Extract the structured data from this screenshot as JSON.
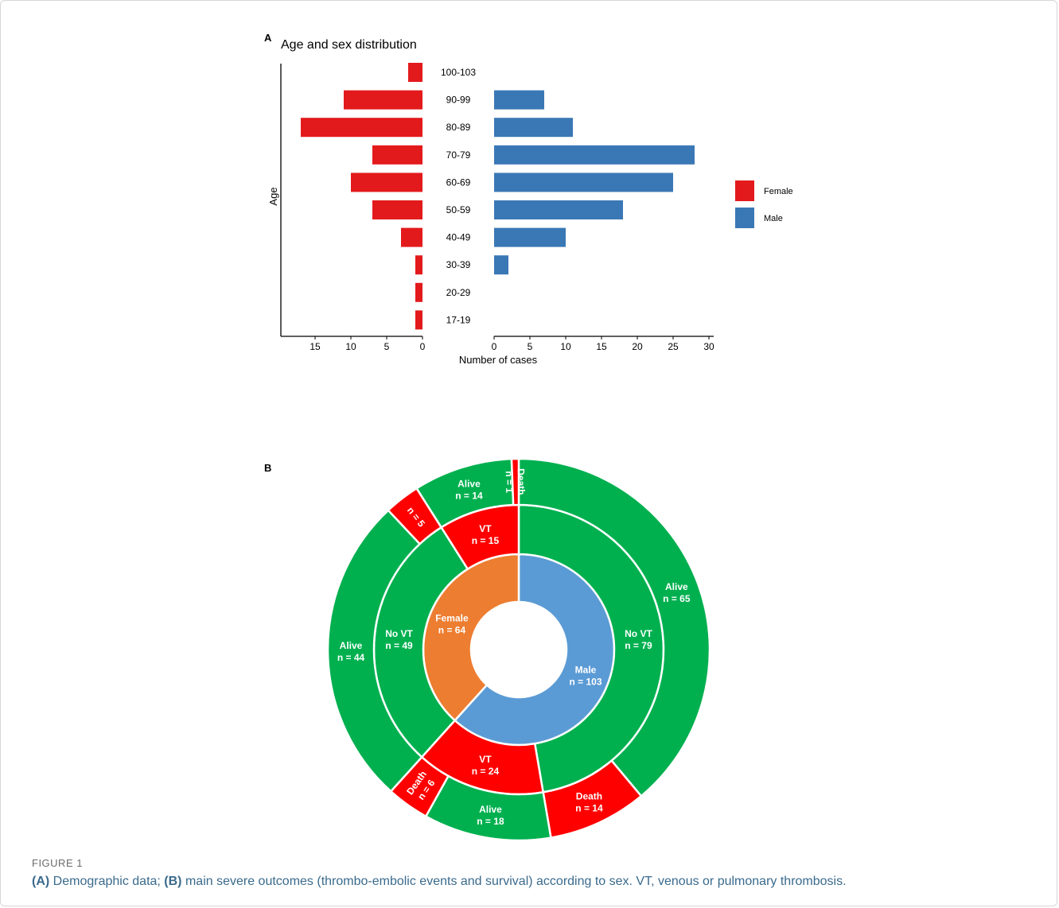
{
  "figure": {
    "label": "FIGURE 1",
    "caption": {
      "a_tag": "(A)",
      "a_text": " Demographic data; ",
      "b_tag": "(B)",
      "b_text": " main severe outcomes (thrombo-embolic events and survival) according to sex. VT, venous or pulmonary thrombosis."
    }
  },
  "colors": {
    "female": "#e31a1c",
    "male": "#3a78b5",
    "green": "#00b04f",
    "red": "#ff0000",
    "orange": "#ed7d31",
    "blue": "#5b9bd5"
  },
  "chart_data": [
    {
      "panel": "A",
      "type": "bar",
      "orientation": "horizontal-pyramid",
      "title": "Age and sex distribution",
      "ylabel": "Age",
      "xlabel": "Number of cases",
      "categories": [
        "100-103",
        "90-99",
        "80-89",
        "70-79",
        "60-69",
        "50-59",
        "40-49",
        "30-39",
        "20-29",
        "17-19"
      ],
      "series": [
        {
          "name": "Female",
          "values": [
            2,
            11,
            17,
            7,
            10,
            7,
            3,
            1,
            1,
            1
          ],
          "xlim": [
            0,
            17
          ]
        },
        {
          "name": "Male",
          "values": [
            0,
            7,
            11,
            28,
            25,
            18,
            10,
            2,
            0,
            0
          ],
          "xlim": [
            0,
            30
          ]
        }
      ],
      "female_ticks": [
        15,
        10,
        5,
        0
      ],
      "male_ticks": [
        0,
        5,
        10,
        15,
        20,
        25,
        30
      ],
      "legend": "right"
    },
    {
      "panel": "B",
      "type": "pie",
      "subtype": "sunburst",
      "rings": [
        [
          {
            "line1": "Male",
            "line2": "n = 103",
            "value": 103,
            "color": "blue"
          },
          {
            "line1": "Female",
            "line2": "n = 64",
            "value": 64,
            "color": "orange"
          }
        ],
        [
          {
            "line1": "No VT",
            "line2": "n = 79",
            "value": 79,
            "color": "green"
          },
          {
            "line1": "VT",
            "line2": "n = 24",
            "value": 24,
            "color": "red"
          },
          {
            "line1": "No VT",
            "line2": "n = 49",
            "value": 49,
            "color": "green"
          },
          {
            "line1": "VT",
            "line2": "n = 15",
            "value": 15,
            "color": "red"
          }
        ],
        [
          {
            "line1": "Alive",
            "line2": "n = 65",
            "value": 65,
            "color": "green"
          },
          {
            "line1": "Death",
            "line2": "n = 14",
            "value": 14,
            "color": "red"
          },
          {
            "line1": "Alive",
            "line2": "n = 18",
            "value": 18,
            "color": "green"
          },
          {
            "line1": "Death",
            "line2": "n = 6",
            "value": 6,
            "color": "red"
          },
          {
            "line1": "Alive",
            "line2": "n = 44",
            "value": 44,
            "color": "green"
          },
          {
            "line1": "",
            "line2": "n = 5",
            "value": 5,
            "color": "red"
          },
          {
            "line1": "Alive",
            "line2": "n = 14",
            "value": 14,
            "color": "green"
          },
          {
            "line1": "Death",
            "line2": "n = 1",
            "value": 1,
            "color": "red"
          }
        ]
      ]
    }
  ]
}
